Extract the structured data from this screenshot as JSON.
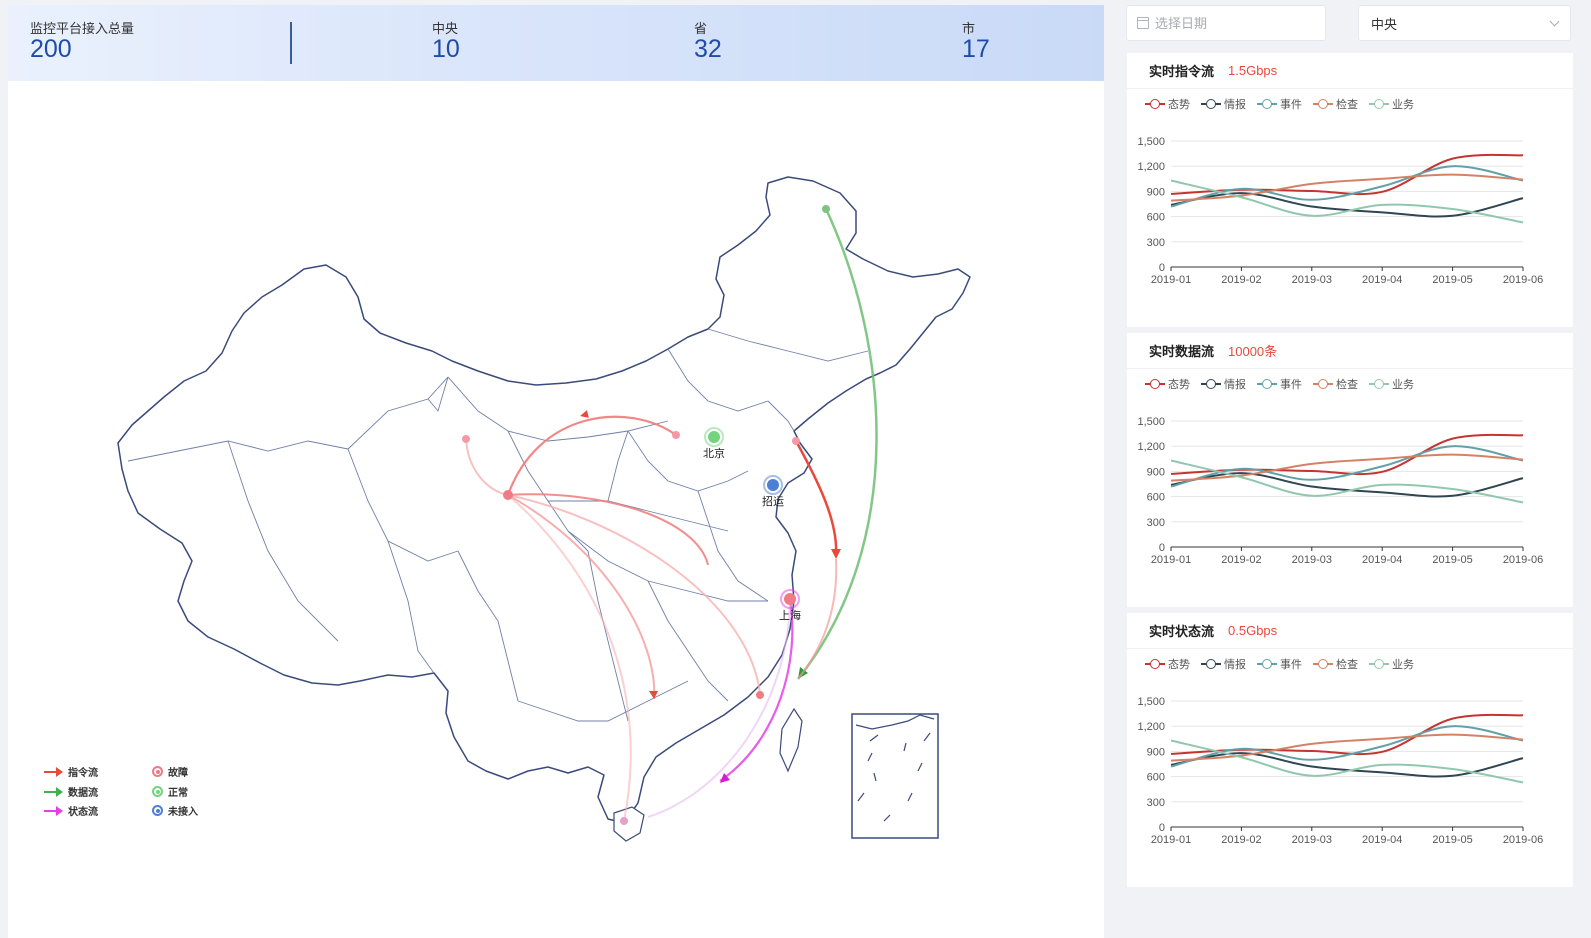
{
  "stats": {
    "total": {
      "label": "监控平台接入总量",
      "value": "200"
    },
    "central": {
      "label": "中央",
      "value": "10"
    },
    "province": {
      "label": "省",
      "value": "32"
    },
    "city": {
      "label": "市",
      "value": "17"
    }
  },
  "map": {
    "city_labels": {
      "beijing": "北京",
      "zhaoyun": "招运",
      "shanghai": "上海"
    },
    "legend": {
      "command_flow": "指令流",
      "data_flow": "数据流",
      "status_flow": "状态流",
      "fault": "故障",
      "normal": "正常",
      "not_connected": "未接入"
    },
    "colors": {
      "command": "#e8493b",
      "data": "#3cb44b",
      "status": "#e63ee6",
      "fault": "#f07a86",
      "normal": "#74d37e",
      "not_connected": "#4e7fd6",
      "border": "#3a4a7a"
    }
  },
  "controls": {
    "date_placeholder": "选择日期",
    "level_value": "中央"
  },
  "series_legend": [
    "态势",
    "情报",
    "事件",
    "检查",
    "业务"
  ],
  "series_colors": [
    "#c23531",
    "#2f4554",
    "#61a0a8",
    "#d48265",
    "#91c7ae"
  ],
  "cards": [
    {
      "title": "实时指令流",
      "metric": "1.5Gbps"
    },
    {
      "title": "实时数据流",
      "metric": "10000条"
    },
    {
      "title": "实时状态流",
      "metric": "0.5Gbps"
    }
  ],
  "chart_data": [
    {
      "type": "line",
      "x": [
        "2019-01",
        "2019-02",
        "2019-03",
        "2019-04",
        "2019-05",
        "2019-06"
      ],
      "ylim": [
        0,
        1500
      ],
      "yticks": [
        0,
        300,
        600,
        900,
        1200,
        1500
      ],
      "grid": true,
      "legend_position": "top-left",
      "series": [
        {
          "name": "态势",
          "values": [
            870,
            920,
            905,
            895,
            1290,
            1330
          ]
        },
        {
          "name": "情报",
          "values": [
            740,
            880,
            720,
            650,
            610,
            820
          ]
        },
        {
          "name": "事件",
          "values": [
            720,
            930,
            800,
            960,
            1200,
            1030
          ]
        },
        {
          "name": "检查",
          "values": [
            790,
            850,
            990,
            1050,
            1100,
            1040
          ]
        },
        {
          "name": "业务",
          "values": [
            1030,
            830,
            610,
            740,
            690,
            530
          ]
        }
      ]
    },
    {
      "type": "line",
      "x": [
        "2019-01",
        "2019-02",
        "2019-03",
        "2019-04",
        "2019-05",
        "2019-06"
      ],
      "ylim": [
        0,
        1500
      ],
      "yticks": [
        0,
        300,
        600,
        900,
        1200,
        1500
      ],
      "grid": true,
      "legend_position": "top-left",
      "series": [
        {
          "name": "态势",
          "values": [
            870,
            920,
            905,
            895,
            1290,
            1330
          ]
        },
        {
          "name": "情报",
          "values": [
            740,
            880,
            720,
            650,
            610,
            820
          ]
        },
        {
          "name": "事件",
          "values": [
            720,
            930,
            800,
            960,
            1200,
            1030
          ]
        },
        {
          "name": "检查",
          "values": [
            790,
            850,
            990,
            1050,
            1100,
            1040
          ]
        },
        {
          "name": "业务",
          "values": [
            1030,
            830,
            610,
            740,
            690,
            530
          ]
        }
      ]
    },
    {
      "type": "line",
      "x": [
        "2019-01",
        "2019-02",
        "2019-03",
        "2019-04",
        "2019-05",
        "2019-06"
      ],
      "ylim": [
        0,
        1500
      ],
      "yticks": [
        0,
        300,
        600,
        900,
        1200,
        1500
      ],
      "grid": true,
      "legend_position": "top-left",
      "series": [
        {
          "name": "态势",
          "values": [
            870,
            920,
            905,
            895,
            1290,
            1330
          ]
        },
        {
          "name": "情报",
          "values": [
            740,
            880,
            720,
            650,
            610,
            820
          ]
        },
        {
          "name": "事件",
          "values": [
            720,
            930,
            800,
            960,
            1200,
            1030
          ]
        },
        {
          "name": "检查",
          "values": [
            790,
            850,
            990,
            1050,
            1100,
            1040
          ]
        },
        {
          "name": "业务",
          "values": [
            1030,
            830,
            610,
            740,
            690,
            530
          ]
        }
      ]
    }
  ]
}
